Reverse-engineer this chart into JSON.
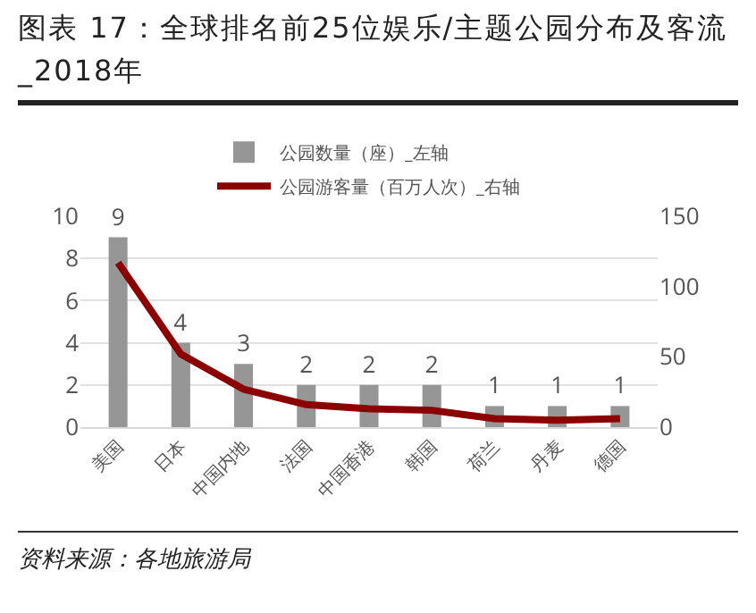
{
  "chart_data": {
    "type": "bar",
    "title": "图表 17：全球排名前25位娱乐/主题公园分布及客流_2018年",
    "categories": [
      "美国",
      "日本",
      "中国内地",
      "法国",
      "中国香港",
      "韩国",
      "荷兰",
      "丹麦",
      "德国"
    ],
    "series": [
      {
        "name": "公园数量（座）_左轴",
        "color": "#969696",
        "values": [
          9,
          4,
          3,
          2,
          2,
          2,
          1,
          1,
          1
        ],
        "value_labels": [
          "9",
          "4",
          "3",
          "2",
          "2",
          "2",
          "1",
          "1",
          "1"
        ]
      },
      {
        "name": "公园游客量（百万人次）_右轴",
        "type": "line",
        "axis": "y2",
        "color": "#8b0000",
        "values": [
          117,
          52,
          27,
          16,
          13,
          12,
          6,
          5,
          6
        ]
      }
    ],
    "ylim": [
      0,
      10
    ],
    "yticks": [
      0,
      2,
      4,
      6,
      8,
      10
    ],
    "y2lim": [
      0,
      150
    ],
    "y2ticks": [
      0,
      50,
      100,
      150
    ],
    "grid": "y",
    "legend": "top",
    "marker": "none",
    "line_style": "solid",
    "annotations": [
      "资料来源：各地旅游局"
    ]
  }
}
